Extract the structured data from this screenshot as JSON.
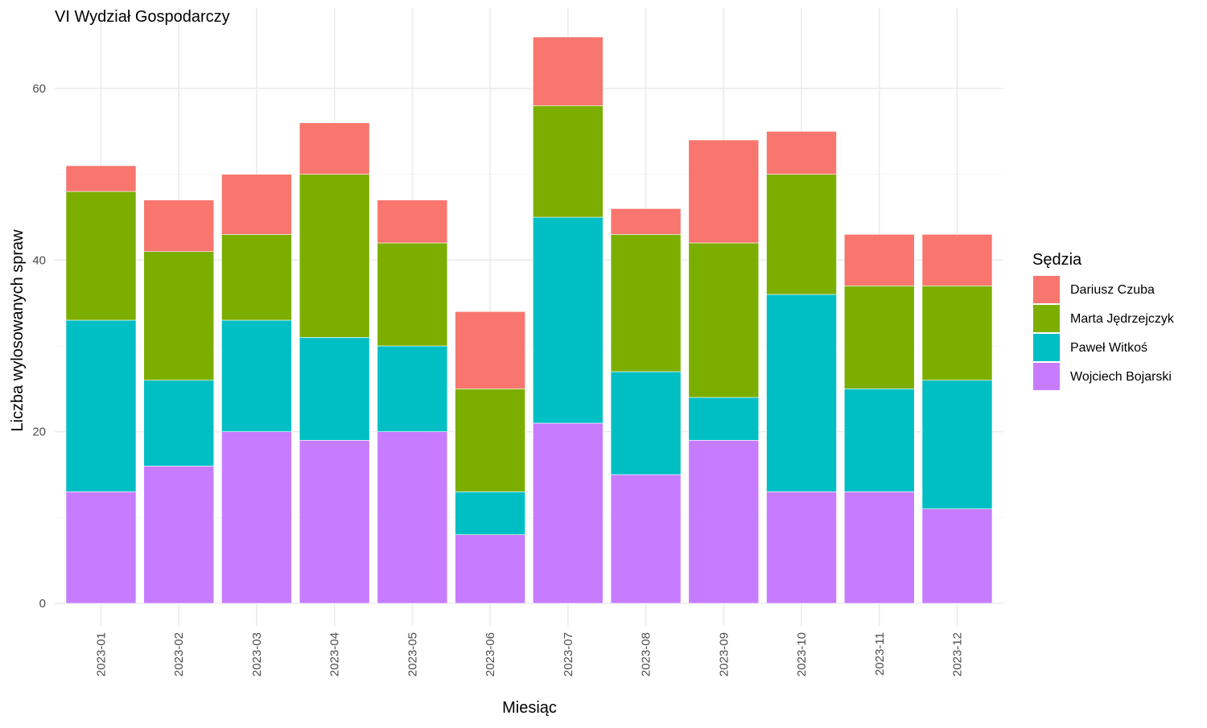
{
  "chart_data": {
    "type": "bar",
    "stacked": true,
    "title": "VI Wydział Gospodarczy",
    "xlabel": "Miesiąc",
    "ylabel": "Liczba wylosowanych spraw",
    "ylim": [
      0,
      70
    ],
    "y_ticks": [
      0,
      20,
      40,
      60
    ],
    "grid": true,
    "legend": {
      "title": "Sędzia",
      "placement": "right"
    },
    "categories": [
      "2023-01",
      "2023-02",
      "2023-03",
      "2023-04",
      "2023-05",
      "2023-06",
      "2023-07",
      "2023-08",
      "2023-09",
      "2023-10",
      "2023-11",
      "2023-12"
    ],
    "series": [
      {
        "name": "Wojciech Bojarski",
        "color": "#C77CFF",
        "values": [
          13,
          16,
          20,
          19,
          20,
          8,
          21,
          15,
          19,
          13,
          13,
          11
        ]
      },
      {
        "name": "Paweł Witkoś",
        "color": "#00BFC4",
        "values": [
          20,
          10,
          13,
          12,
          10,
          5,
          24,
          12,
          5,
          23,
          12,
          15
        ]
      },
      {
        "name": "Marta Jędrzejczyk",
        "color": "#7CAE00",
        "values": [
          15,
          15,
          10,
          19,
          12,
          12,
          13,
          16,
          18,
          14,
          12,
          11
        ]
      },
      {
        "name": "Dariusz Czuba",
        "color": "#F8766D",
        "values": [
          3,
          6,
          7,
          6,
          5,
          9,
          8,
          3,
          12,
          5,
          6,
          6
        ]
      }
    ],
    "legend_order": [
      "Dariusz Czuba",
      "Marta Jędrzejczyk",
      "Paweł Witkoś",
      "Wojciech Bojarski"
    ]
  }
}
